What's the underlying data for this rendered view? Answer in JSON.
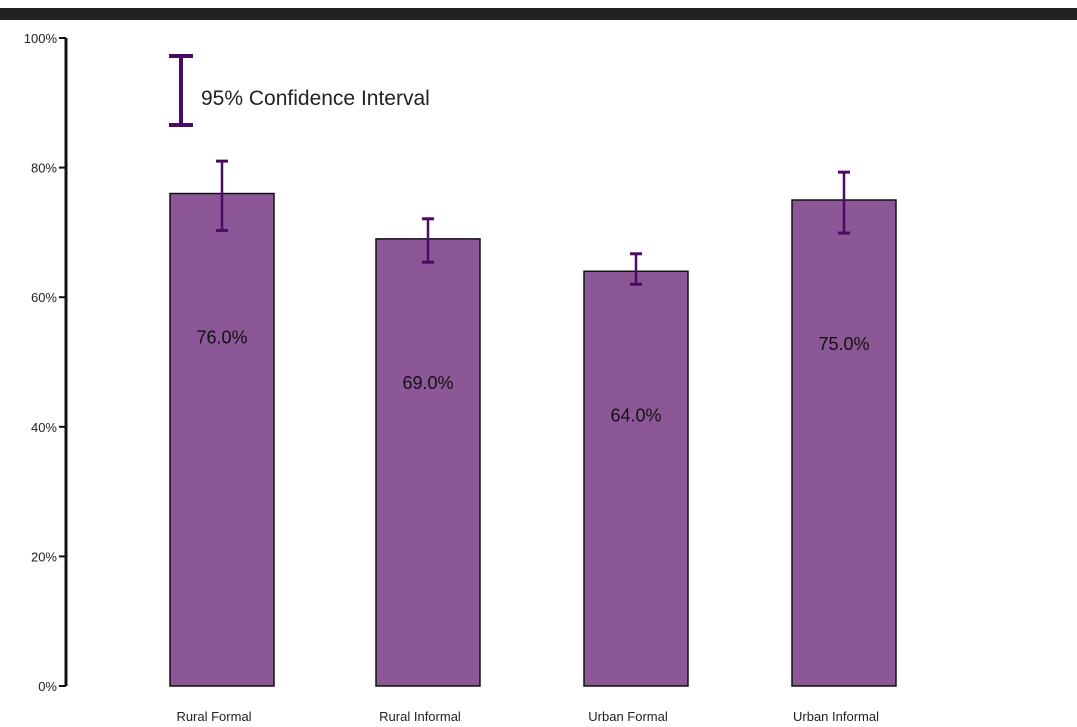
{
  "chart_data": {
    "type": "bar",
    "categories": [
      "Rural Formal",
      "Rural Informal",
      "Urban Formal",
      "Urban Informal"
    ],
    "values": [
      76.0,
      69.0,
      64.0,
      75.0
    ],
    "data_labels": [
      "76.0%",
      "69.0%",
      "64.0%",
      "75.0%"
    ],
    "error_bars": [
      {
        "low": 70.3,
        "high": 81.0
      },
      {
        "low": 65.4,
        "high": 72.1
      },
      {
        "low": 62.0,
        "high": 66.7
      },
      {
        "low": 69.9,
        "high": 79.3
      }
    ],
    "ylim": [
      0,
      100
    ],
    "yticks": [
      0,
      20,
      40,
      60,
      80,
      100
    ],
    "ytick_labels": [
      "0%",
      "20%",
      "40%",
      "60%",
      "80%",
      "100%"
    ],
    "title": "",
    "xlabel": "",
    "ylabel": "",
    "legend": {
      "label": "95% Confidence Interval",
      "placement": "top-left"
    },
    "grid": false,
    "colors": {
      "bar_fill": "#8B5797",
      "bar_stroke": "#111111",
      "error_bar": "#4B0A63",
      "top_rule": "#222222"
    }
  }
}
